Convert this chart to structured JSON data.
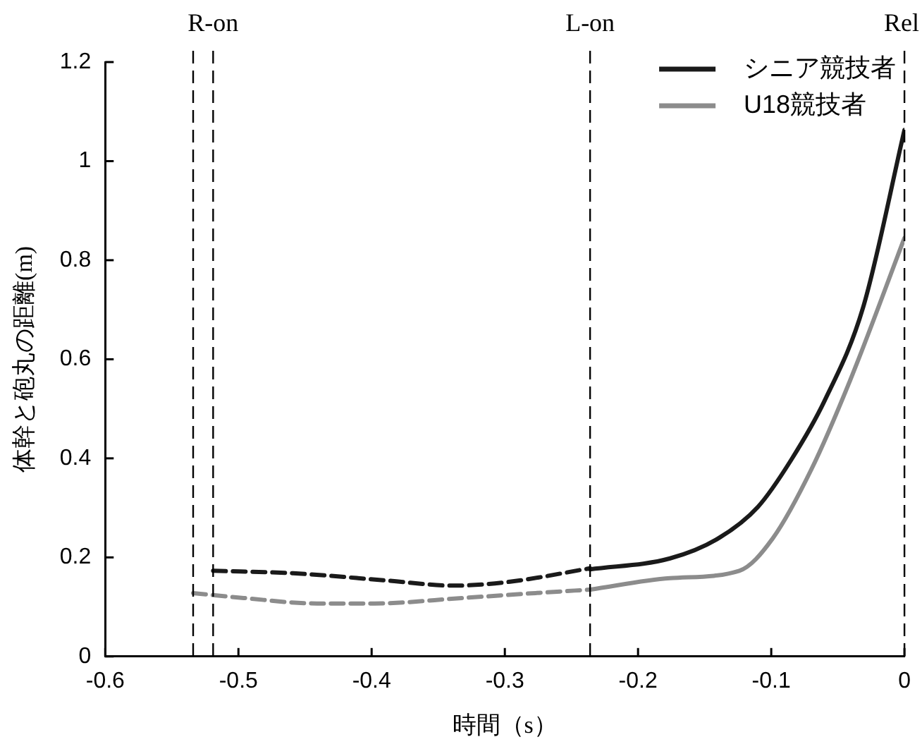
{
  "chart_data": {
    "type": "line",
    "xlabel": "時間（s）",
    "ylabel": "体幹と砲丸の距離(m)",
    "xlim": [
      -0.6,
      0
    ],
    "xticks": [
      -0.6,
      -0.5,
      -0.4,
      -0.3,
      -0.2,
      -0.1,
      0
    ],
    "ylim": [
      0,
      1.2
    ],
    "yticks": [
      0,
      0.2,
      0.4,
      0.6,
      0.8,
      1,
      1.2
    ],
    "grid": false,
    "legend": "top right",
    "marker": "none",
    "series": [
      {
        "color": "#1a1a1a",
        "line_style": "dashed",
        "x": [
          -0.519,
          -0.459,
          -0.387,
          -0.339,
          -0.296,
          -0.236
        ],
        "values": [
          0.173,
          0.168,
          0.153,
          0.143,
          0.151,
          0.178
        ]
      },
      {
        "color": "#8c8c8c",
        "line_style": "dashed",
        "x": [
          -0.534,
          -0.496,
          -0.441,
          -0.398,
          -0.332,
          -0.277,
          -0.236
        ],
        "values": [
          0.128,
          0.118,
          0.107,
          0.107,
          0.118,
          0.128,
          0.135
        ]
      },
      {
        "name": "シニア競技者",
        "color": "#1a1a1a",
        "line_style": "solid",
        "x": [
          -0.236,
          -0.176,
          -0.14,
          -0.11,
          -0.085,
          -0.06,
          -0.031,
          0
        ],
        "values": [
          0.176,
          0.198,
          0.238,
          0.302,
          0.397,
          0.516,
          0.705,
          1.063
        ]
      },
      {
        "name": "U18競技者",
        "color": "#8c8c8c",
        "line_style": "solid",
        "x": [
          -0.236,
          -0.176,
          -0.124,
          -0.099,
          -0.07,
          -0.041,
          0
        ],
        "values": [
          0.135,
          0.158,
          0.173,
          0.238,
          0.377,
          0.556,
          0.845
        ]
      }
    ],
    "ref_lines": [
      {
        "axis": "x",
        "value": -0.534,
        "color": "#000000",
        "line_style": "dashed"
      },
      {
        "axis": "x",
        "value": -0.519,
        "label": "R-on",
        "color": "#000000",
        "line_style": "dashed"
      },
      {
        "axis": "x",
        "value": -0.236,
        "label": "L-on",
        "color": "#000000",
        "line_style": "dashed"
      },
      {
        "axis": "x",
        "value": 0,
        "label": "Rel",
        "color": "#000000",
        "line_style": "dashed"
      }
    ]
  }
}
